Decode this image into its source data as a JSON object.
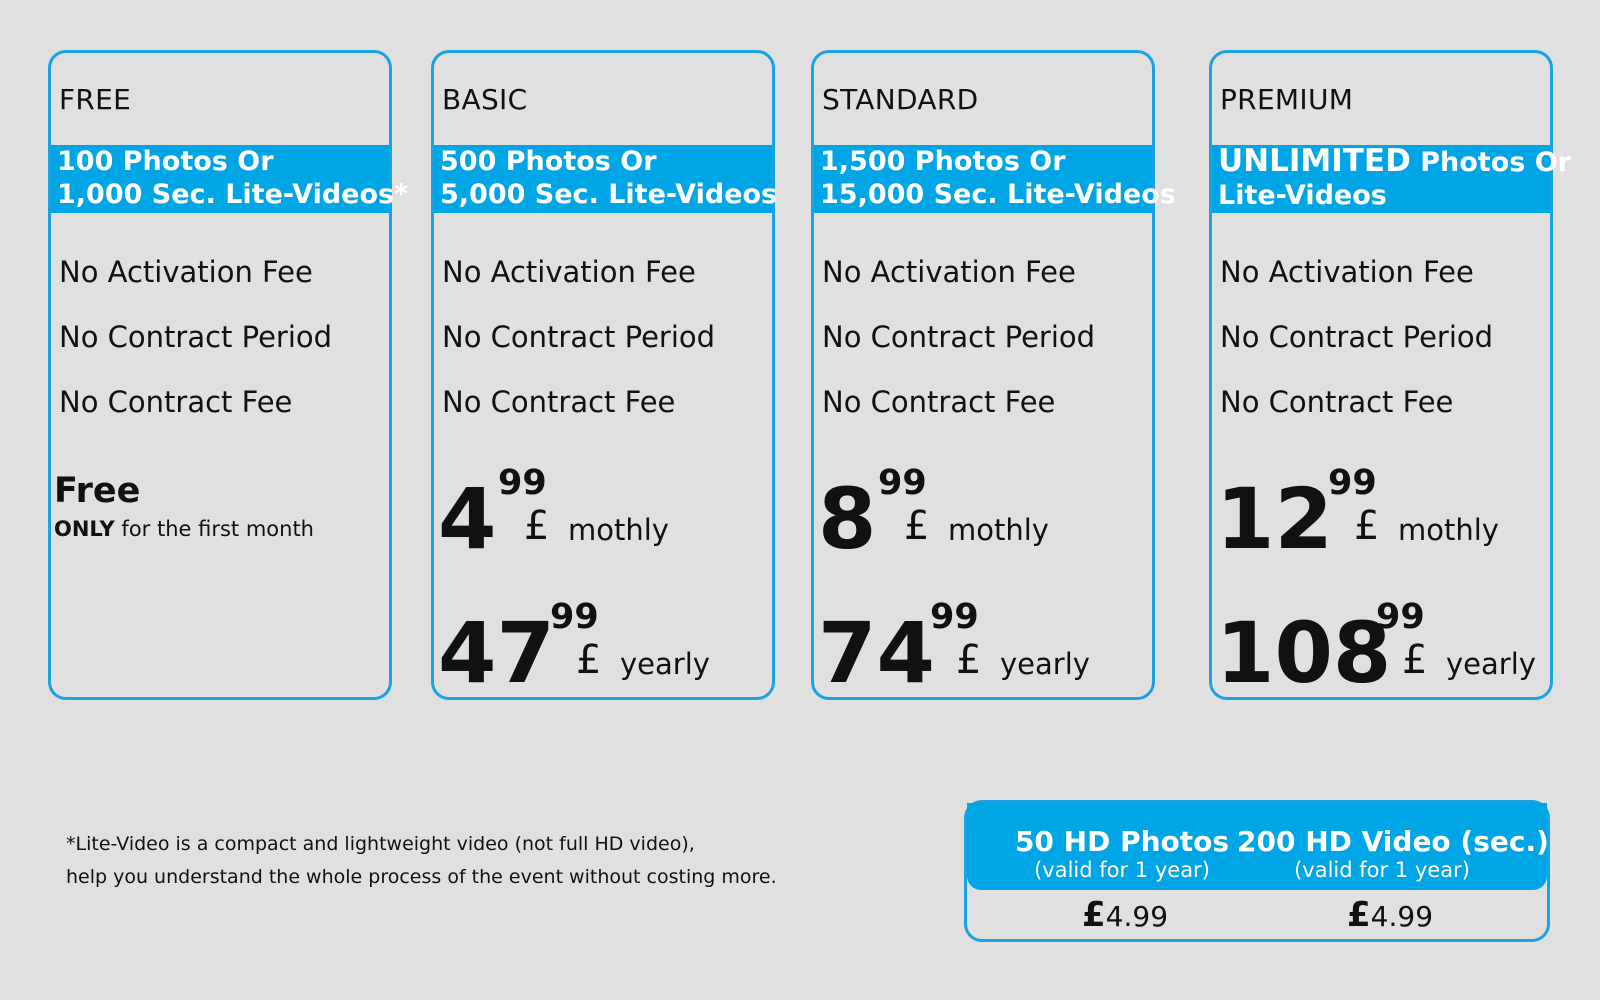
{
  "plans": [
    {
      "name": "FREE",
      "band_line1": "100 Photos Or",
      "band_line2": "1,000 Sec. Lite-Videos*",
      "features": [
        "No Activation Fee",
        "No Contract Period",
        "No Contract Fee"
      ],
      "free_title": "Free",
      "free_note_bold": "ONLY",
      "free_note_rest": " for the first month"
    },
    {
      "name": "BASIC",
      "band_line1": "500 Photos Or",
      "band_line2": "5,000 Sec. Lite-Videos",
      "features": [
        "No Activation Fee",
        "No Contract Period",
        "No Contract Fee"
      ],
      "monthly": {
        "whole": "4",
        "cents": "99",
        "currency": "£",
        "period": "mothly"
      },
      "yearly": {
        "whole": "47",
        "cents": "99",
        "currency": "£",
        "period": "yearly"
      }
    },
    {
      "name": "STANDARD",
      "band_line1": "1,500 Photos Or",
      "band_line2": "15,000 Sec. Lite-Videos",
      "features": [
        "No Activation Fee",
        "No Contract Period",
        "No Contract Fee"
      ],
      "monthly": {
        "whole": "8",
        "cents": "99",
        "currency": "£",
        "period": "mothly"
      },
      "yearly": {
        "whole": "74",
        "cents": "99",
        "currency": "£",
        "period": "yearly"
      }
    },
    {
      "name": "PREMIUM",
      "band_big": "UNLIMITED",
      "band_line1_rest": " Photos Or",
      "band_line2": "Lite-Videos",
      "features": [
        "No Activation Fee",
        "No Contract Period",
        "No Contract Fee"
      ],
      "monthly": {
        "whole": "12",
        "cents": "99",
        "currency": "£",
        "period": "mothly"
      },
      "yearly": {
        "whole": "108",
        "cents": "99",
        "currency": "£",
        "period": "yearly"
      }
    }
  ],
  "footnote": {
    "line1": "*Lite-Video is a compact and lightweight video (not full HD video),",
    "line2": "help you understand the whole process of the event without costing more."
  },
  "addons": [
    {
      "title": "50 HD Photos",
      "subtitle": "(valid for 1 year)",
      "currency": "£",
      "price": "4.99"
    },
    {
      "title": "200 HD Video (sec.)",
      "subtitle": "(valid for 1 year)",
      "currency": "£",
      "price": "4.99"
    }
  ],
  "colors": {
    "accent": "#00a5e6",
    "border": "#1aa3e0",
    "background": "#e0e0e0"
  }
}
